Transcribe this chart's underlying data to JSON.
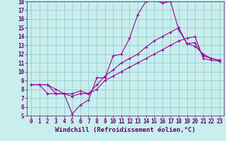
{
  "xlabel": "Windchill (Refroidissement éolien,°C)",
  "bg_color": "#c8eeee",
  "grid_color": "#99cccc",
  "line_color": "#990099",
  "xlim": [
    -0.5,
    23.5
  ],
  "ylim": [
    5,
    18
  ],
  "xticks": [
    0,
    1,
    2,
    3,
    4,
    5,
    6,
    7,
    8,
    9,
    10,
    11,
    12,
    13,
    14,
    15,
    16,
    17,
    18,
    19,
    20,
    21,
    22,
    23
  ],
  "yticks": [
    5,
    6,
    7,
    8,
    9,
    10,
    11,
    12,
    13,
    14,
    15,
    16,
    17,
    18
  ],
  "curve1_x": [
    0,
    1,
    2,
    3,
    4,
    5,
    6,
    7,
    8,
    9,
    10,
    11,
    12,
    13,
    14,
    15,
    16,
    17,
    18,
    19,
    20,
    21,
    22,
    23
  ],
  "curve1_y": [
    8.5,
    8.5,
    7.5,
    7.5,
    7.5,
    5.2,
    6.2,
    6.8,
    9.3,
    9.3,
    11.8,
    12.0,
    13.8,
    16.5,
    18.0,
    18.2,
    17.8,
    18.0,
    14.8,
    13.2,
    12.9,
    12.0,
    11.5,
    11.3
  ],
  "curve2_x": [
    0,
    1,
    2,
    3,
    4,
    5,
    6,
    7,
    8,
    9,
    10,
    11,
    12,
    13,
    14,
    15,
    16,
    17,
    18,
    19,
    20,
    21,
    22,
    23
  ],
  "curve2_y": [
    8.5,
    8.5,
    8.5,
    7.5,
    7.5,
    7.5,
    7.8,
    7.5,
    8.5,
    9.5,
    10.2,
    11.0,
    11.5,
    12.0,
    12.8,
    13.5,
    14.0,
    14.5,
    15.0,
    13.2,
    13.3,
    11.8,
    11.5,
    11.3
  ],
  "curve3_x": [
    0,
    1,
    2,
    3,
    4,
    5,
    6,
    7,
    8,
    9,
    10,
    11,
    12,
    13,
    14,
    15,
    16,
    17,
    18,
    19,
    20,
    21,
    22,
    23
  ],
  "curve3_y": [
    8.5,
    8.5,
    8.5,
    8.0,
    7.5,
    7.2,
    7.5,
    7.5,
    8.0,
    9.0,
    9.5,
    10.0,
    10.5,
    11.0,
    11.5,
    12.0,
    12.5,
    13.0,
    13.5,
    13.8,
    14.0,
    11.5,
    11.3,
    11.2
  ],
  "tick_fontsize": 5.5,
  "label_fontsize": 6.5,
  "tick_color": "#660066",
  "label_color": "#660066"
}
